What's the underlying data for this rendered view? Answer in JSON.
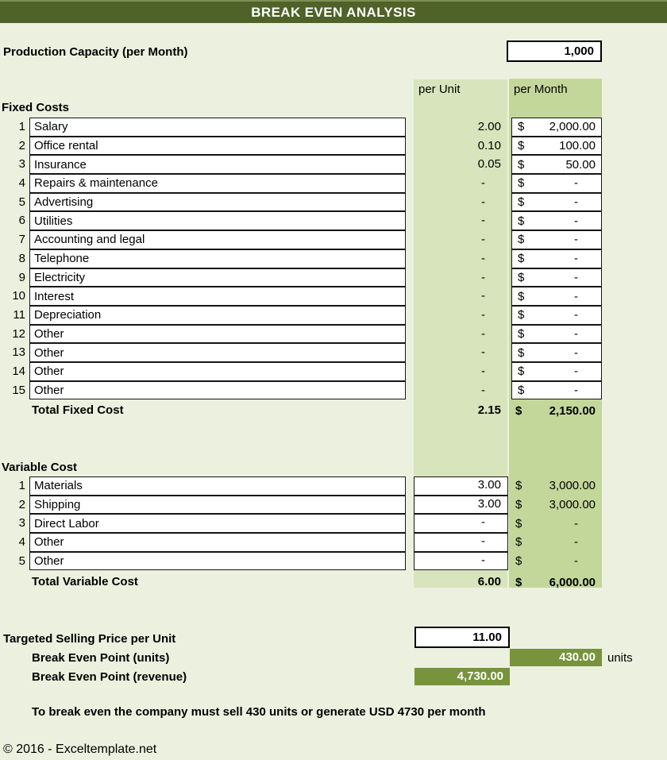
{
  "title": "BREAK EVEN ANALYSIS",
  "currency_symbol": "$",
  "production_capacity": {
    "label": "Production Capacity (per Month)",
    "value": "1,000"
  },
  "columns": {
    "per_unit": "per Unit",
    "per_month": "per Month"
  },
  "fixed_costs": {
    "section_label": "Fixed Costs",
    "rows": [
      {
        "num": "1",
        "name": "Salary",
        "per_unit": "2.00",
        "per_month": "2,000.00"
      },
      {
        "num": "2",
        "name": "Office rental",
        "per_unit": "0.10",
        "per_month": "100.00"
      },
      {
        "num": "3",
        "name": "Insurance",
        "per_unit": "0.05",
        "per_month": "50.00"
      },
      {
        "num": "4",
        "name": "Repairs & maintenance",
        "per_unit": "-",
        "per_month": "-"
      },
      {
        "num": "5",
        "name": "Advertising",
        "per_unit": "-",
        "per_month": "-"
      },
      {
        "num": "6",
        "name": "Utilities",
        "per_unit": "-",
        "per_month": "-"
      },
      {
        "num": "7",
        "name": "Accounting and legal",
        "per_unit": "-",
        "per_month": "-"
      },
      {
        "num": "8",
        "name": "Telephone",
        "per_unit": "-",
        "per_month": "-"
      },
      {
        "num": "9",
        "name": "Electricity",
        "per_unit": "-",
        "per_month": "-"
      },
      {
        "num": "10",
        "name": "Interest",
        "per_unit": "-",
        "per_month": "-"
      },
      {
        "num": "11",
        "name": "Depreciation",
        "per_unit": "-",
        "per_month": "-"
      },
      {
        "num": "12",
        "name": "Other",
        "per_unit": "-",
        "per_month": "-"
      },
      {
        "num": "13",
        "name": "Other",
        "per_unit": "-",
        "per_month": "-"
      },
      {
        "num": "14",
        "name": "Other",
        "per_unit": "-",
        "per_month": "-"
      },
      {
        "num": "15",
        "name": "Other",
        "per_unit": "-",
        "per_month": "-"
      }
    ],
    "total": {
      "label": "Total Fixed Cost",
      "per_unit": "2.15",
      "per_month": "2,150.00"
    }
  },
  "variable_costs": {
    "section_label": "Variable Cost",
    "rows": [
      {
        "num": "1",
        "name": "Materials",
        "per_unit": "3.00",
        "per_month": "3,000.00"
      },
      {
        "num": "2",
        "name": "Shipping",
        "per_unit": "3.00",
        "per_month": "3,000.00"
      },
      {
        "num": "3",
        "name": "Direct Labor",
        "per_unit": "-",
        "per_month": "-"
      },
      {
        "num": "4",
        "name": "Other",
        "per_unit": "-",
        "per_month": "-"
      },
      {
        "num": "5",
        "name": "Other",
        "per_unit": "-",
        "per_month": "-"
      }
    ],
    "total": {
      "label": "Total Variable Cost",
      "per_unit": "6.00",
      "per_month": "6,000.00"
    }
  },
  "selling_price": {
    "label": "Targeted Selling Price per Unit",
    "value": "11.00"
  },
  "break_even_units": {
    "label": "Break Even Point (units)",
    "value": "430.00",
    "suffix": "units"
  },
  "break_even_revenue": {
    "label": "Break Even Point (revenue)",
    "value": "4,730.00"
  },
  "note": "To break even the company must sell 430 units or generate USD 4730 per month",
  "footer": "© 2016 - Exceltemplate.net",
  "colors": {
    "page_background": "#ECF1DF",
    "title_bar": "#4F6228",
    "per_unit_band": "#D8E4BC",
    "per_month_band": "#C4D79B",
    "result_highlight": "#77933C",
    "input_cell": "#FFFFFF"
  }
}
